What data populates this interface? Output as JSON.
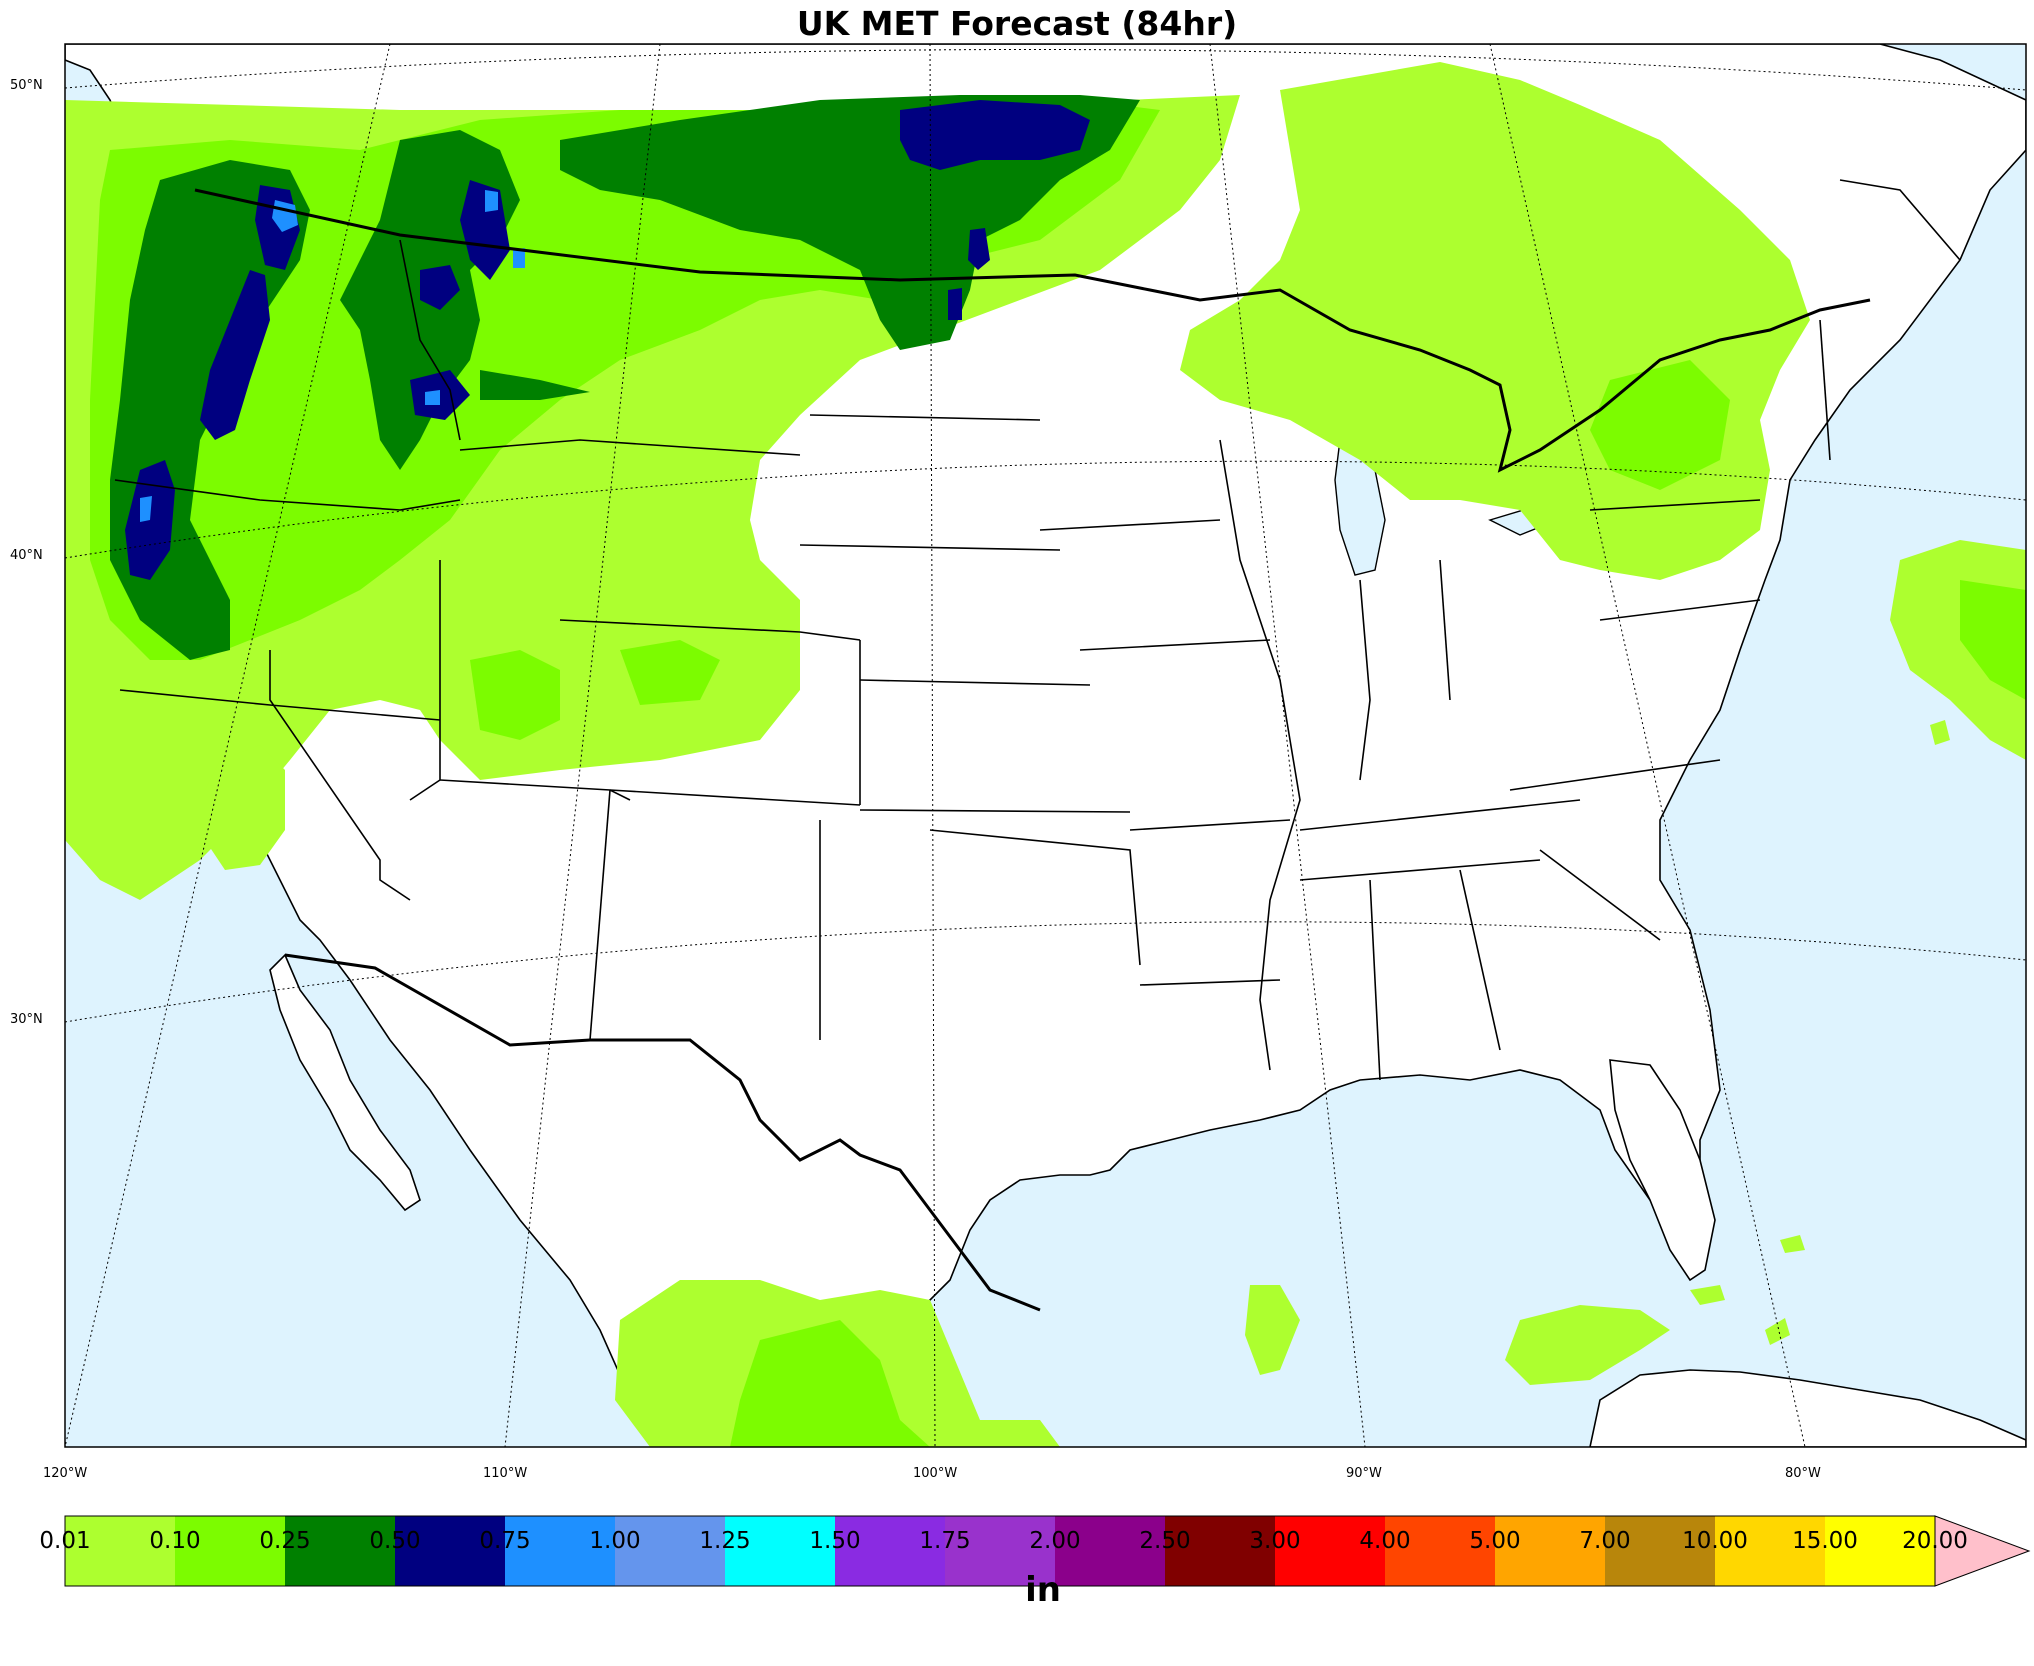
{
  "title": "UK MET Forecast (84hr)",
  "map": {
    "region": "CONUS",
    "lat_labels": [
      "50°N",
      "40°N",
      "30°N"
    ],
    "lon_labels": [
      "120°W",
      "110°W",
      "100°W",
      "90°W",
      "80°W"
    ]
  },
  "colorbar": {
    "units": "in",
    "labels": [
      "0.01",
      "0.10",
      "0.25",
      "0.50",
      "0.75",
      "1.00",
      "1.25",
      "1.50",
      "1.75",
      "2.00",
      "2.50",
      "3.00",
      "4.00",
      "5.00",
      "7.00",
      "10.00",
      "15.00",
      "20.00"
    ],
    "colors": [
      "#adff2f",
      "#7cfc00",
      "#008000",
      "#000080",
      "#1e90ff",
      "#6495ed",
      "#00ffff",
      "#8a2be2",
      "#9932cc",
      "#8b008b",
      "#800000",
      "#ff0000",
      "#ff4500",
      "#ffa500",
      "#b8860b",
      "#ffd700",
      "#ffff00"
    ],
    "extend_color": "#ffc0cb"
  },
  "colors": {
    "ocean": "#def3fe",
    "land": "#ffffff",
    "border": "#000000"
  }
}
